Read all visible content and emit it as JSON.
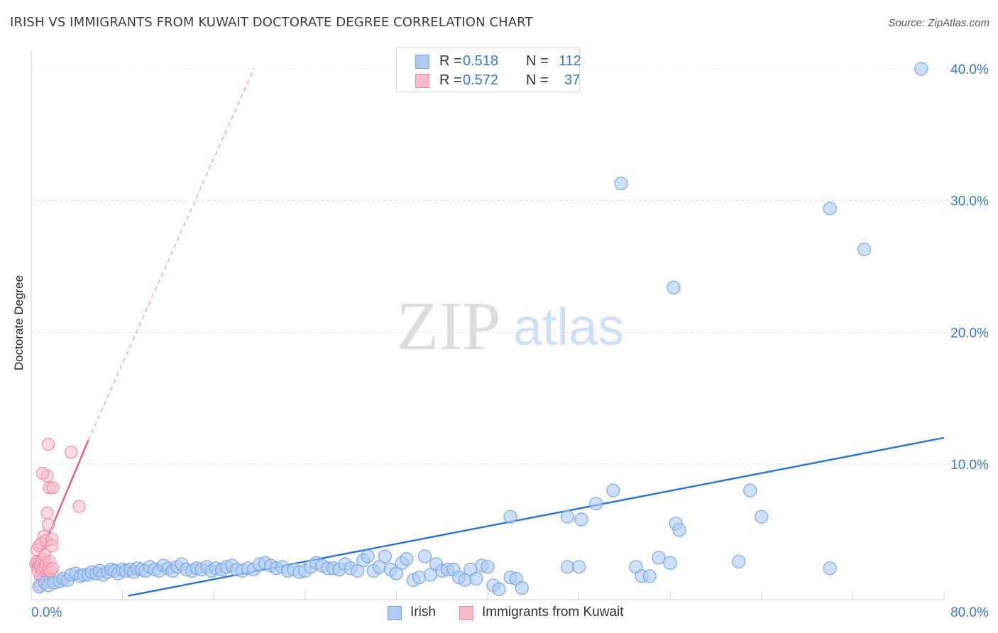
{
  "header": {
    "title": "IRISH VS IMMIGRANTS FROM KUWAIT DOCTORATE DEGREE CORRELATION CHART",
    "source": "Source: ZipAtlas.com"
  },
  "watermark": {
    "zip": "ZIP",
    "atlas": "atlas"
  },
  "legend": {
    "irish": {
      "r_label": "R =",
      "r_value": "0.518",
      "n_label": "N =",
      "n_value": "112"
    },
    "kuwait": {
      "r_label": "R =",
      "r_value": "0.572",
      "n_label": "N =",
      "n_value": "37"
    }
  },
  "bottom_legend": {
    "irish": "Irish",
    "kuwait": "Immigrants from Kuwait"
  },
  "colors": {
    "irish_fill": "#aecbf2",
    "irish_stroke": "#7aa6e0",
    "irish_line": "#2a72d4",
    "kuwait_fill": "#f7bccb",
    "kuwait_stroke": "#ee8ca8",
    "kuwait_line": "#e8578a",
    "tick_text": "#3a78c9",
    "grid": "#e1e1e1"
  },
  "chart_data": {
    "type": "scatter",
    "title": "IRISH VS IMMIGRANTS FROM KUWAIT DOCTORATE DEGREE CORRELATION CHART",
    "xlabel": "",
    "ylabel": "Doctorate Degree",
    "xlim": [
      0,
      80
    ],
    "ylim": [
      0,
      42
    ],
    "x_tick_labels": [
      "0.0%",
      "80.0%"
    ],
    "y_ticks": [
      10,
      20,
      30,
      40
    ],
    "y_tick_labels": [
      "10.0%",
      "20.0%",
      "30.0%",
      "40.0%"
    ],
    "grid": true,
    "series": [
      {
        "name": "Irish",
        "color": "#aecbf2",
        "points": [
          [
            0.7,
            0.7
          ],
          [
            1.2,
            1.0
          ],
          [
            1.5,
            0.8
          ],
          [
            2.0,
            1.0
          ],
          [
            2.5,
            1.1
          ],
          [
            2.8,
            1.3
          ],
          [
            3.2,
            1.2
          ],
          [
            3.5,
            1.6
          ],
          [
            3.9,
            1.7
          ],
          [
            4.3,
            1.5
          ],
          [
            4.6,
            1.6
          ],
          [
            5.0,
            1.6
          ],
          [
            5.3,
            1.8
          ],
          [
            5.7,
            1.7
          ],
          [
            6.0,
            1.9
          ],
          [
            6.3,
            1.6
          ],
          [
            6.7,
            1.8
          ],
          [
            7.0,
            2.0
          ],
          [
            7.3,
            1.9
          ],
          [
            7.6,
            1.7
          ],
          [
            8.0,
            2.0
          ],
          [
            8.3,
            1.9
          ],
          [
            8.7,
            2.0
          ],
          [
            9.0,
            1.8
          ],
          [
            9.3,
            2.1
          ],
          [
            9.7,
            2.0
          ],
          [
            10.0,
            1.9
          ],
          [
            10.4,
            2.2
          ],
          [
            10.8,
            2.0
          ],
          [
            11.2,
            1.9
          ],
          [
            11.6,
            2.3
          ],
          [
            12.0,
            2.1
          ],
          [
            12.4,
            1.9
          ],
          [
            12.8,
            2.2
          ],
          [
            13.2,
            2.4
          ],
          [
            13.6,
            2.0
          ],
          [
            14.1,
            1.9
          ],
          [
            14.5,
            2.1
          ],
          [
            14.9,
            2.0
          ],
          [
            15.4,
            2.2
          ],
          [
            15.8,
            1.9
          ],
          [
            16.2,
            2.1
          ],
          [
            16.7,
            2.0
          ],
          [
            17.1,
            2.2
          ],
          [
            17.6,
            2.3
          ],
          [
            18.0,
            2.0
          ],
          [
            18.5,
            1.9
          ],
          [
            19.0,
            2.1
          ],
          [
            19.5,
            2.0
          ],
          [
            20.0,
            2.4
          ],
          [
            20.5,
            2.5
          ],
          [
            21.0,
            2.3
          ],
          [
            21.5,
            2.1
          ],
          [
            22.0,
            2.2
          ],
          [
            22.5,
            1.9
          ],
          [
            23.0,
            2.0
          ],
          [
            23.5,
            1.8
          ],
          [
            24.0,
            1.9
          ],
          [
            24.5,
            2.2
          ],
          [
            25.0,
            2.5
          ],
          [
            25.5,
            2.3
          ],
          [
            26.0,
            2.1
          ],
          [
            26.5,
            2.1
          ],
          [
            27.0,
            2.0
          ],
          [
            27.5,
            2.4
          ],
          [
            28.0,
            2.1
          ],
          [
            28.6,
            1.9
          ],
          [
            29.1,
            2.7
          ],
          [
            29.5,
            3.0
          ],
          [
            30.0,
            1.9
          ],
          [
            30.5,
            2.2
          ],
          [
            31.0,
            3.0
          ],
          [
            31.5,
            2.0
          ],
          [
            32.0,
            1.7
          ],
          [
            32.5,
            2.5
          ],
          [
            32.9,
            2.8
          ],
          [
            33.5,
            1.2
          ],
          [
            34.0,
            1.4
          ],
          [
            34.5,
            3.0
          ],
          [
            35.0,
            1.6
          ],
          [
            35.5,
            2.4
          ],
          [
            36.0,
            1.9
          ],
          [
            36.5,
            2.0
          ],
          [
            37.0,
            2.0
          ],
          [
            37.5,
            1.4
          ],
          [
            38.0,
            1.2
          ],
          [
            38.5,
            2.0
          ],
          [
            39.0,
            1.3
          ],
          [
            39.5,
            2.3
          ],
          [
            40.0,
            2.2
          ],
          [
            40.5,
            0.8
          ],
          [
            41.0,
            0.5
          ],
          [
            42.0,
            1.4
          ],
          [
            42.5,
            1.3
          ],
          [
            43.0,
            0.6
          ],
          [
            42.0,
            6.0
          ],
          [
            47.0,
            6.0
          ],
          [
            48.2,
            5.8
          ],
          [
            49.5,
            7.0
          ],
          [
            51.0,
            8.0
          ],
          [
            47.0,
            2.2
          ],
          [
            48.0,
            2.2
          ],
          [
            53.0,
            2.2
          ],
          [
            53.5,
            1.5
          ],
          [
            54.2,
            1.5
          ],
          [
            55.0,
            2.9
          ],
          [
            56.0,
            2.5
          ],
          [
            56.5,
            5.5
          ],
          [
            56.8,
            5.0
          ],
          [
            63.0,
            8.0
          ],
          [
            64.0,
            6.0
          ],
          [
            62.0,
            2.6
          ],
          [
            70.0,
            2.1
          ],
          [
            51.7,
            31.3
          ],
          [
            56.3,
            23.4
          ],
          [
            70.0,
            29.4
          ],
          [
            73.0,
            26.3
          ],
          [
            78.0,
            40.0
          ]
        ],
        "trendline": {
          "x": [
            8.5,
            80.0
          ],
          "y": [
            0.0,
            12.0
          ]
        }
      },
      {
        "name": "Immigrants from Kuwait",
        "color": "#f7bccb",
        "points": [
          [
            0.4,
            2.4
          ],
          [
            0.5,
            2.6
          ],
          [
            0.5,
            3.5
          ],
          [
            0.6,
            2.2
          ],
          [
            0.6,
            1.9
          ],
          [
            0.7,
            2.5
          ],
          [
            0.7,
            3.8
          ],
          [
            0.8,
            2.3
          ],
          [
            0.8,
            1.5
          ],
          [
            0.9,
            2.7
          ],
          [
            0.9,
            4.0
          ],
          [
            1.0,
            2.0
          ],
          [
            1.0,
            1.3
          ],
          [
            1.1,
            2.8
          ],
          [
            1.1,
            4.5
          ],
          [
            1.2,
            2.1
          ],
          [
            1.2,
            3.1
          ],
          [
            1.3,
            2.4
          ],
          [
            1.3,
            4.2
          ],
          [
            1.4,
            1.6
          ],
          [
            1.4,
            6.3
          ],
          [
            1.5,
            2.0
          ],
          [
            1.6,
            8.2
          ],
          [
            1.5,
            5.4
          ],
          [
            1.4,
            9.1
          ],
          [
            1.0,
            9.3
          ],
          [
            1.5,
            11.5
          ],
          [
            1.8,
            4.3
          ],
          [
            1.9,
            8.2
          ],
          [
            1.8,
            3.8
          ],
          [
            1.7,
            1.9
          ],
          [
            1.6,
            2.6
          ],
          [
            3.5,
            10.9
          ],
          [
            4.2,
            6.8
          ],
          [
            0.8,
            0.8
          ],
          [
            1.2,
            1.0
          ],
          [
            1.9,
            2.1
          ]
        ],
        "trendline": {
          "x": [
            0.3,
            5.0
          ],
          "y": [
            2.1,
            11.8
          ]
        },
        "trendline_extension": {
          "x": [
            5.0,
            19.5
          ],
          "y": [
            11.8,
            40.0
          ]
        }
      }
    ]
  }
}
